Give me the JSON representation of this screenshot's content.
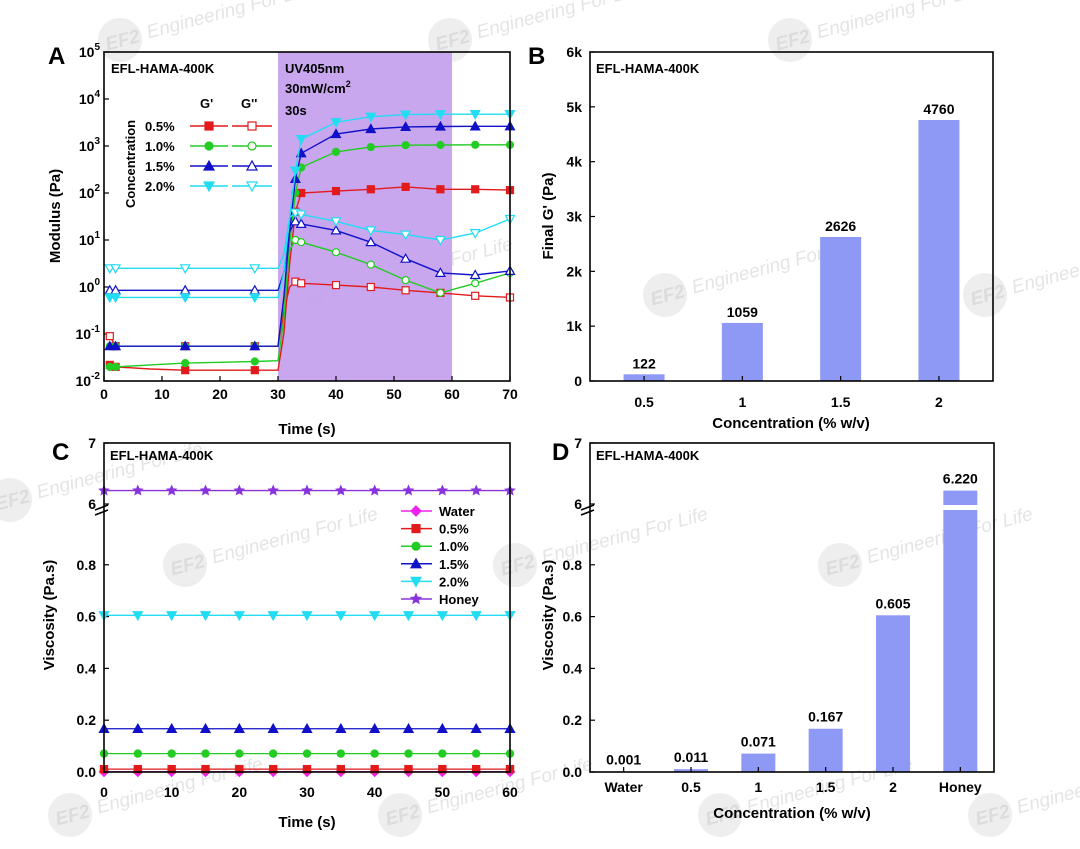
{
  "colors": {
    "c05": "#e31a1c",
    "c10": "#22cc22",
    "c15": "#1010c8",
    "c20": "#22dcf2",
    "water": "#ee22ee",
    "honey": "#8833dd",
    "bar": "#8e98f5",
    "uv": "#c6a2ee"
  },
  "watermark": {
    "logo": "EF2",
    "text": "Engineering For Life"
  },
  "chart_data": [
    {
      "panel": "A",
      "type": "line",
      "title": "EFL-HAMA-400K",
      "xlabel": "Time (s)",
      "ylabel": "Modulus (Pa)",
      "yscale": "log",
      "xlim": [
        0,
        70
      ],
      "ylim": [
        0.01,
        100000
      ],
      "xticks": [
        "0",
        "10",
        "20",
        "30",
        "40",
        "50",
        "60",
        "70"
      ],
      "yticks": [
        "10-2",
        "10-1",
        "100",
        "101",
        "102",
        "103",
        "104",
        "105"
      ],
      "uv_window": [
        30,
        60
      ],
      "uv_text": [
        "UV405nm",
        "30mW/cm2",
        "30s"
      ],
      "legend_title": "Concentration",
      "legend_cols": [
        "G'",
        "G''"
      ],
      "legend_labels": [
        "0.5%",
        "1.0%",
        "1.5%",
        "2.0%"
      ],
      "series": [
        {
          "name": "0.5% G'",
          "color_key": "c05",
          "marker": "square",
          "filled": true,
          "x": [
            1,
            2,
            8,
            14,
            20,
            26,
            30,
            31,
            32,
            33,
            34,
            40,
            46,
            52,
            58,
            64,
            70
          ],
          "y": [
            0.022,
            0.02,
            0.018,
            0.017,
            0.017,
            0.017,
            0.017,
            0.1,
            3,
            40,
            100,
            110,
            120,
            135,
            120,
            120,
            115
          ]
        },
        {
          "name": "0.5% G''",
          "color_key": "c05",
          "marker": "square",
          "filled": false,
          "x": [
            1,
            2,
            8,
            14,
            20,
            26,
            30,
            31,
            32,
            33,
            34,
            40,
            46,
            52,
            58,
            64,
            70
          ],
          "y": [
            0.09,
            0.055,
            0.055,
            0.055,
            0.055,
            0.055,
            0.055,
            0.3,
            1,
            1.3,
            1.2,
            1.1,
            1.0,
            0.85,
            0.75,
            0.65,
            0.6
          ]
        },
        {
          "name": "1.0% G'",
          "color_key": "c10",
          "marker": "circle",
          "filled": true,
          "x": [
            1,
            2,
            8,
            14,
            20,
            26,
            30,
            31,
            32,
            33,
            34,
            40,
            46,
            52,
            58,
            64,
            70
          ],
          "y": [
            0.02,
            0.02,
            0.022,
            0.024,
            0.025,
            0.026,
            0.027,
            0.2,
            8,
            100,
            350,
            750,
            950,
            1040,
            1050,
            1060,
            1060
          ]
        },
        {
          "name": "1.0% G''",
          "color_key": "c10",
          "marker": "circle",
          "filled": false,
          "x": [
            1,
            2,
            8,
            14,
            20,
            26,
            30,
            31,
            32,
            33,
            34,
            40,
            46,
            52,
            58,
            64,
            70
          ],
          "y": [
            0.055,
            0.055,
            0.055,
            0.055,
            0.055,
            0.055,
            0.055,
            0.5,
            6,
            10,
            9,
            5.5,
            3.0,
            1.4,
            0.75,
            1.2,
            2.0
          ]
        },
        {
          "name": "1.5% G'",
          "color_key": "c15",
          "marker": "triangle-up",
          "filled": true,
          "x": [
            1,
            2,
            8,
            14,
            20,
            26,
            30,
            31,
            32,
            33,
            34,
            40,
            46,
            52,
            58,
            64,
            70
          ],
          "y": [
            0.055,
            0.055,
            0.055,
            0.055,
            0.055,
            0.055,
            0.055,
            0.6,
            15,
            200,
            700,
            1800,
            2300,
            2550,
            2600,
            2620,
            2630
          ]
        },
        {
          "name": "1.5% G''",
          "color_key": "c15",
          "marker": "triangle-up",
          "filled": false,
          "x": [
            1,
            2,
            8,
            14,
            20,
            26,
            30,
            31,
            32,
            33,
            34,
            40,
            46,
            52,
            58,
            64,
            70
          ],
          "y": [
            0.85,
            0.85,
            0.85,
            0.85,
            0.85,
            0.85,
            0.85,
            2,
            15,
            25,
            22,
            16,
            9,
            4,
            2.0,
            1.8,
            2.2
          ]
        },
        {
          "name": "2.0% G'",
          "color_key": "c20",
          "marker": "triangle-down",
          "filled": true,
          "x": [
            1,
            2,
            8,
            14,
            20,
            26,
            30,
            31,
            32,
            33,
            34,
            40,
            46,
            52,
            58,
            64,
            70
          ],
          "y": [
            0.6,
            0.6,
            0.6,
            0.6,
            0.6,
            0.6,
            0.6,
            2,
            30,
            300,
            1400,
            3200,
            4200,
            4650,
            4750,
            4760,
            4760
          ]
        },
        {
          "name": "2.0% G''",
          "color_key": "c20",
          "marker": "triangle-down",
          "filled": false,
          "x": [
            1,
            2,
            8,
            14,
            20,
            26,
            30,
            31,
            32,
            33,
            34,
            40,
            46,
            52,
            58,
            64,
            70
          ],
          "y": [
            2.5,
            2.5,
            2.5,
            2.5,
            2.5,
            2.5,
            2.5,
            5,
            30,
            38,
            35,
            25,
            16,
            13,
            10,
            14,
            28
          ]
        }
      ]
    },
    {
      "panel": "B",
      "type": "bar",
      "title": "EFL-HAMA-400K",
      "xlabel": "Concentration (% w/v)",
      "ylabel": "Final G' (Pa)",
      "categories": [
        "0.5",
        "1",
        "1.5",
        "2"
      ],
      "values": [
        122,
        1059,
        2626,
        4760
      ],
      "value_labels": [
        "122",
        "1059",
        "2626",
        "4760"
      ],
      "ylim": [
        0,
        6000
      ],
      "yticks": [
        "0",
        "1k",
        "2k",
        "3k",
        "4k",
        "5k",
        "6k"
      ]
    },
    {
      "panel": "C",
      "type": "line",
      "title": "EFL-HAMA-400K",
      "xlabel": "Time (s)",
      "ylabel": "Viscosity (Pa.s)",
      "xlim": [
        0,
        60
      ],
      "ylim": [
        0,
        1.0
      ],
      "axis_break": [
        1.0,
        6.0
      ],
      "ylim_upper": [
        6.0,
        7.0
      ],
      "xticks": [
        "0",
        "10",
        "20",
        "30",
        "40",
        "50",
        "60"
      ],
      "yticks": [
        "0.0",
        "0.2",
        "0.4",
        "0.6",
        "0.8",
        "6",
        "7"
      ],
      "legend_labels": [
        "Water",
        "0.5%",
        "1.0%",
        "1.5%",
        "2.0%",
        "Honey"
      ],
      "series": [
        {
          "name": "Water",
          "color_key": "water",
          "marker": "diamond",
          "value": 0.001
        },
        {
          "name": "0.5%",
          "color_key": "c05",
          "marker": "square",
          "value": 0.011
        },
        {
          "name": "1.0%",
          "color_key": "c10",
          "marker": "circle",
          "value": 0.071
        },
        {
          "name": "1.5%",
          "color_key": "c15",
          "marker": "triangle-up",
          "value": 0.167
        },
        {
          "name": "2.0%",
          "color_key": "c20",
          "marker": "triangle-down",
          "value": 0.605
        },
        {
          "name": "Honey",
          "color_key": "honey",
          "marker": "star",
          "value": 6.22
        }
      ]
    },
    {
      "panel": "D",
      "type": "bar",
      "title": "EFL-HAMA-400K",
      "xlabel": "Concentration (% w/v)",
      "ylabel": "Viscosity (Pa.s)",
      "categories": [
        "Water",
        "0.5",
        "1",
        "1.5",
        "2",
        "Honey"
      ],
      "values": [
        0.001,
        0.011,
        0.071,
        0.167,
        0.605,
        6.22
      ],
      "value_labels": [
        "0.001",
        "0.011",
        "0.071",
        "0.167",
        "0.605",
        "6.220"
      ],
      "ylim": [
        0,
        1.0
      ],
      "axis_break": [
        1.0,
        6.0
      ],
      "ylim_upper": [
        6.0,
        7.0
      ],
      "yticks": [
        "0.0",
        "0.2",
        "0.4",
        "0.6",
        "0.8",
        "6",
        "7"
      ]
    }
  ]
}
